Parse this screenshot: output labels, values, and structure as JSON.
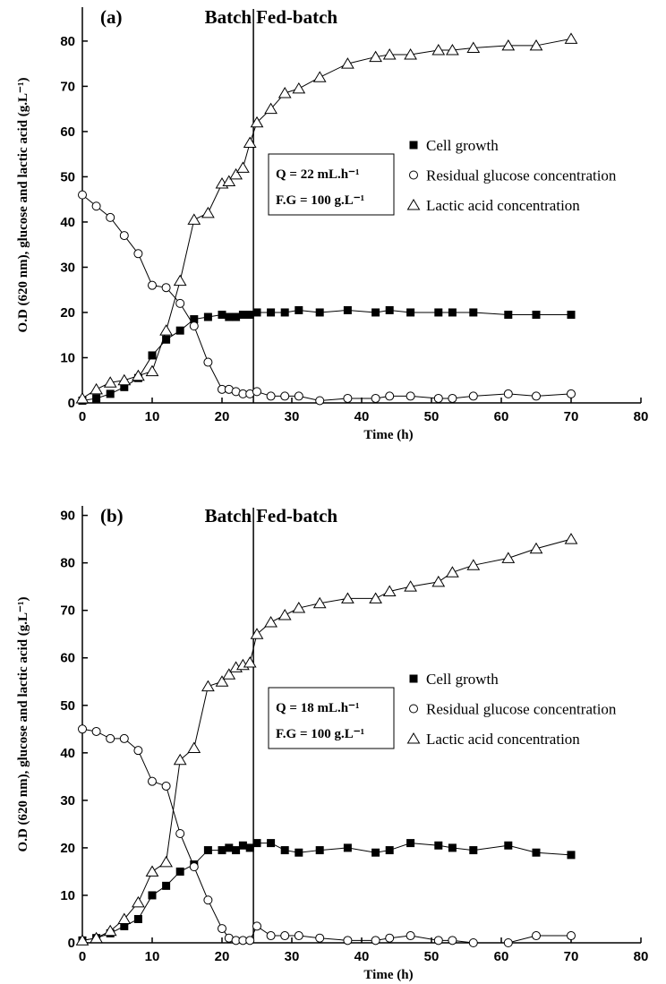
{
  "chart_data": [
    {
      "type": "line",
      "panel_label": "(a)",
      "batch_label": "Batch",
      "fed_batch_label": "Fed-batch",
      "feed_rate": "Q = 22 mL.h⁻¹",
      "feed_glucose": "F.G = 100 g.L⁻¹",
      "phase_switch_x": 24.5,
      "x_label": "Time (h)",
      "y_label": "O.D (620 nm), glucose and lactic acid (g.L⁻¹)",
      "x": [
        0,
        2,
        4,
        6,
        8,
        10,
        12,
        14,
        16,
        18,
        20,
        21,
        22,
        23,
        24,
        25,
        27,
        29,
        31,
        34,
        38,
        42,
        44,
        47,
        51,
        53,
        56,
        61,
        65,
        70
      ],
      "series": [
        {
          "name": "Cell growth",
          "color": "#000000",
          "marker": "square-filled",
          "values": [
            0.5,
            1,
            2,
            3.5,
            5.5,
            10.5,
            14,
            16,
            18.5,
            19,
            19.5,
            19,
            19,
            19.5,
            19.5,
            20,
            20,
            20,
            20.5,
            20,
            20.5,
            20,
            20.5,
            20,
            20,
            20,
            20,
            19.5,
            19.5,
            19.5
          ]
        },
        {
          "name": "Residual glucose concentration",
          "color": "#000000",
          "marker": "circle-open",
          "values": [
            46,
            43.5,
            41,
            37,
            33,
            26,
            25.5,
            22,
            17,
            9,
            3,
            3,
            2.5,
            2,
            2,
            2.5,
            1.5,
            1.5,
            1.5,
            0.5,
            1,
            1,
            1.5,
            1.5,
            1,
            1,
            1.5,
            2,
            1.5,
            2
          ]
        },
        {
          "name": "Lactic acid concentration",
          "color": "#000000",
          "marker": "triangle-open",
          "values": [
            1,
            3,
            4.5,
            5,
            6,
            7,
            16,
            27,
            40.5,
            42,
            48.5,
            49,
            50.5,
            52,
            57.5,
            62,
            65,
            68.5,
            69.5,
            72,
            75,
            76.5,
            77,
            77,
            78,
            78,
            78.5,
            79,
            79,
            80.5
          ]
        }
      ],
      "xlim": [
        0,
        80
      ],
      "xticks": [
        0,
        10,
        20,
        30,
        40,
        50,
        60,
        70,
        80
      ],
      "ylim": [
        0,
        87.5
      ],
      "yticks": [
        0,
        10,
        20,
        30,
        40,
        50,
        60,
        70,
        80
      ]
    },
    {
      "type": "line",
      "panel_label": "(b)",
      "batch_label": "Batch",
      "fed_batch_label": "Fed-batch",
      "feed_rate": "Q = 18 mL.h⁻¹",
      "feed_glucose": "F.G = 100 g.L⁻¹",
      "phase_switch_x": 24.5,
      "x_label": "Time (h)",
      "y_label": "O.D (620 nm), glucose and lactic acid (g.L⁻¹)",
      "x": [
        0,
        2,
        4,
        6,
        8,
        10,
        12,
        14,
        16,
        18,
        20,
        21,
        22,
        23,
        24,
        25,
        27,
        29,
        31,
        34,
        38,
        42,
        44,
        47,
        51,
        53,
        56,
        61,
        65,
        70
      ],
      "series": [
        {
          "name": "Cell growth",
          "color": "#000000",
          "marker": "square-filled",
          "values": [
            0.5,
            1,
            2,
            3.5,
            5,
            10,
            12,
            15,
            16.5,
            19.5,
            19.5,
            20,
            19.5,
            20.5,
            20,
            21,
            21,
            19.5,
            19,
            19.5,
            20,
            19,
            19.5,
            21,
            20.5,
            20,
            19.5,
            20.5,
            19,
            18.5
          ]
        },
        {
          "name": "Residual glucose concentration",
          "color": "#000000",
          "marker": "circle-open",
          "values": [
            45,
            44.5,
            43,
            43,
            40.5,
            34,
            33,
            23,
            16,
            9,
            3,
            1,
            0.5,
            0.5,
            0.5,
            3.5,
            1.5,
            1.5,
            1.5,
            1,
            0.5,
            0.5,
            1,
            1.5,
            0.5,
            0.5,
            0,
            0,
            1.5,
            1.5
          ]
        },
        {
          "name": "Lactic acid concentration",
          "color": "#000000",
          "marker": "triangle-open",
          "values": [
            0.5,
            1,
            2.5,
            5,
            8.5,
            15,
            17,
            38.5,
            41,
            54,
            55,
            56.5,
            58,
            58.5,
            59,
            65,
            67.5,
            69,
            70.5,
            71.5,
            72.5,
            72.5,
            74,
            75,
            76,
            78,
            79.5,
            81,
            83,
            85
          ]
        }
      ],
      "xlim": [
        0,
        80
      ],
      "xticks": [
        0,
        10,
        20,
        30,
        40,
        50,
        60,
        70,
        80
      ],
      "ylim": [
        0,
        92
      ],
      "yticks": [
        0,
        10,
        20,
        30,
        40,
        50,
        60,
        70,
        80,
        90
      ]
    }
  ]
}
